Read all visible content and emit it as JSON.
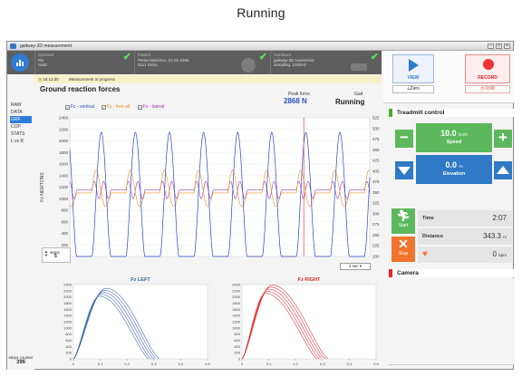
{
  "page_title": "Running",
  "window": {
    "title": "gaitway-3D measurement"
  },
  "header": {
    "operator": {
      "label": "Operator",
      "name": "RS",
      "code": "AMG"
    },
    "patient": {
      "label": "Patient",
      "name": "Penta Massimo, 01-01-1956",
      "code": "5111 Dicks"
    },
    "hardware": {
      "label": "Hardware",
      "name": "gaitway-3D connected",
      "detail": "sampling: 1000Hz"
    }
  },
  "status": {
    "time": "15:13:30",
    "message": "Measurement in progress"
  },
  "nav": [
    "RAW",
    "DATA",
    "GRF",
    "COP",
    "STATS",
    "L vs R"
  ],
  "steps_counter": {
    "label": "steps counter",
    "value": "396"
  },
  "grf": {
    "title": "Ground reaction forces",
    "legend": [
      "Fz - vertical",
      "Fy - fore-aft",
      "Fx - lateral"
    ],
    "peak_label": "Peak force",
    "peak_value": "2868 N",
    "gait_label": "Gait",
    "gait_value": "Running",
    "ylabel": "Fz  NEWTONS",
    "zoom": "3 sec"
  },
  "steps_box": {
    "label": "steps",
    "value": "5"
  },
  "left_plot": {
    "title": "Fz LEFT"
  },
  "right_plot": {
    "title": "Fz RIGHT"
  },
  "controls": {
    "view_label": "VIEW",
    "zero_label": "Zero",
    "record_label": "RECORD",
    "record_time": "0:00"
  },
  "treadmill": {
    "heading": "Treadmill control",
    "speed_value": "10.0",
    "speed_unit": "km/h",
    "speed_label": "Speed",
    "elev_value": "0.0",
    "elev_unit": "%",
    "elev_label": "Elevation",
    "start_label": "Start",
    "stop_label": "Stop",
    "time_label": "Time",
    "time_value": "2:07",
    "distance_label": "Distance",
    "distance_value": "343.3",
    "distance_unit": "m",
    "hr_value": "0",
    "hr_unit": "bpm"
  },
  "camera": {
    "heading": "Camera"
  },
  "colors": {
    "fz": "#2b46c8",
    "fy": "#e8921c",
    "fx": "#9a3fa8",
    "left": "#2f5ea8",
    "right": "#e02a2a",
    "accent": "#2d7cd8"
  },
  "chart_data": [
    {
      "type": "line",
      "title": "Ground reaction forces",
      "ylabel": "Fz  NEWTONS",
      "ylim": [
        0,
        2400
      ],
      "y_ticks": [
        "2400",
        "2200",
        "2000",
        "1800",
        "1600",
        "1400",
        "1200",
        "1000",
        "800",
        "600",
        "400",
        "200",
        "0"
      ],
      "y2_ticks": [
        "525",
        "500",
        "475",
        "450",
        "425",
        "400",
        "375",
        "350",
        "325",
        "300",
        "275",
        "250",
        "225",
        "200"
      ],
      "series": [
        {
          "name": "Fz - vertical",
          "peaks": 9,
          "peak_value": 2150
        },
        {
          "name": "Fy - fore-aft",
          "amplitude": 500
        },
        {
          "name": "Fx - lateral",
          "amplitude": 150
        }
      ]
    },
    {
      "type": "line",
      "title": "Fz LEFT",
      "xlim": [
        0,
        0.5
      ],
      "ylim": [
        0,
        2400
      ],
      "x_ticks": [
        "0",
        "0.1",
        "0.2",
        "0.3",
        "0.4",
        "0.5"
      ],
      "y_ticks": [
        "0",
        "200",
        "400",
        "600",
        "800",
        "1000",
        "1200",
        "1400",
        "1600",
        "1800",
        "2000",
        "2200",
        "2400"
      ],
      "curves": 5,
      "peak_x": 0.11,
      "peak_y": 2150,
      "end_x": 0.3
    },
    {
      "type": "line",
      "title": "Fz RIGHT",
      "xlim": [
        0,
        0.5
      ],
      "ylim": [
        0,
        2400
      ],
      "x_ticks": [
        "0",
        "0.1",
        "0.2",
        "0.3",
        "0.4",
        "0.5"
      ],
      "y_ticks": [
        "0",
        "200",
        "400",
        "600",
        "800",
        "1000",
        "1200",
        "1400",
        "1600",
        "1800",
        "2000",
        "2200",
        "2400"
      ],
      "curves": 5,
      "peak_x": 0.1,
      "peak_y": 2250,
      "end_x": 0.3
    }
  ]
}
